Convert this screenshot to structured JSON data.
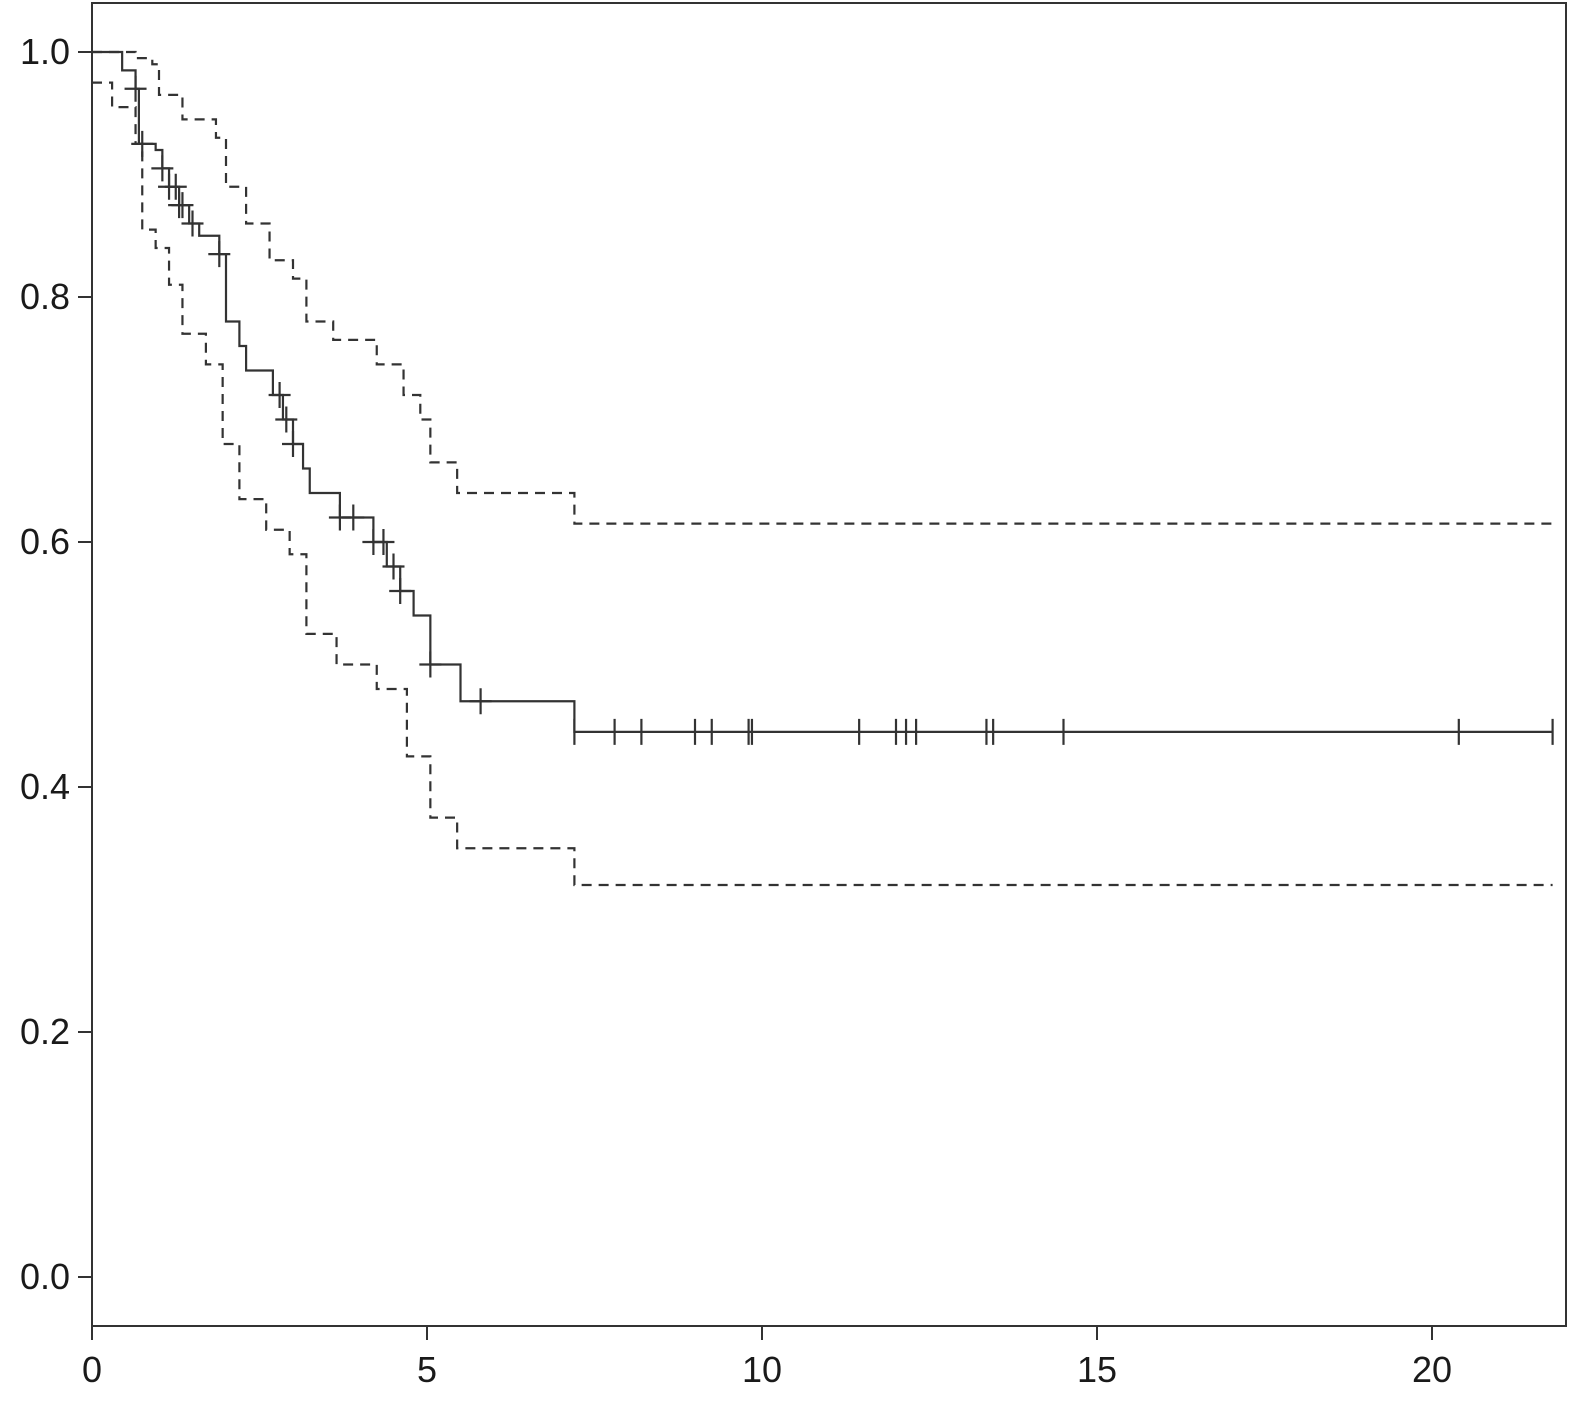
{
  "chart_data": {
    "type": "line",
    "title": "",
    "xlabel": "",
    "ylabel": "",
    "xlim": [
      0,
      22
    ],
    "ylim": [
      -0.04,
      1.04
    ],
    "x_ticks": [
      0,
      5,
      10,
      15,
      20
    ],
    "x_tick_labels": [
      "0",
      "5",
      "10",
      "15",
      "20"
    ],
    "y_ticks": [
      0.0,
      0.2,
      0.4,
      0.6,
      0.8,
      1.0
    ],
    "y_tick_labels": [
      "0.0",
      "0.2",
      "0.4",
      "0.6",
      "0.8",
      "1.0"
    ],
    "grid": false,
    "series": [
      {
        "role": "estimate",
        "style": "solid-step",
        "x": [
          0,
          0.45,
          0.65,
          0.7,
          0.95,
          1.05,
          1.15,
          1.3,
          1.45,
          1.6,
          1.9,
          2.0,
          2.2,
          2.3,
          2.7,
          2.85,
          3.0,
          3.15,
          3.25,
          3.7,
          4.2,
          4.4,
          4.6,
          4.8,
          5.05,
          5.5,
          7.2,
          21.8
        ],
        "y": [
          1.0,
          0.985,
          0.97,
          0.925,
          0.92,
          0.905,
          0.89,
          0.875,
          0.86,
          0.85,
          0.835,
          0.78,
          0.76,
          0.74,
          0.72,
          0.7,
          0.68,
          0.66,
          0.64,
          0.62,
          0.6,
          0.58,
          0.56,
          0.54,
          0.5,
          0.47,
          0.445,
          0.445
        ]
      },
      {
        "role": "upper-ci",
        "style": "dashed-step",
        "x": [
          0,
          0.65,
          0.9,
          1.0,
          1.35,
          1.85,
          2.0,
          2.3,
          2.65,
          3.0,
          3.2,
          3.6,
          4.25,
          4.65,
          4.9,
          5.05,
          5.45,
          7.2,
          21.8
        ],
        "y": [
          1.0,
          0.995,
          0.99,
          0.965,
          0.945,
          0.93,
          0.89,
          0.86,
          0.83,
          0.815,
          0.78,
          0.765,
          0.745,
          0.72,
          0.7,
          0.665,
          0.64,
          0.615,
          0.615
        ]
      },
      {
        "role": "lower-ci",
        "style": "dashed-step",
        "x": [
          0,
          0.3,
          0.65,
          0.75,
          0.95,
          1.15,
          1.35,
          1.7,
          1.95,
          2.2,
          2.6,
          2.95,
          3.2,
          3.65,
          4.25,
          4.7,
          5.05,
          5.45,
          7.2,
          21.8
        ],
        "y": [
          0.975,
          0.955,
          0.925,
          0.855,
          0.84,
          0.81,
          0.77,
          0.745,
          0.68,
          0.635,
          0.61,
          0.59,
          0.525,
          0.5,
          0.48,
          0.425,
          0.375,
          0.35,
          0.32,
          0.32
        ]
      }
    ],
    "censor_times": [
      0.65,
      0.75,
      1.05,
      1.15,
      1.25,
      1.3,
      1.35,
      1.5,
      1.9,
      2.8,
      2.9,
      3.0,
      3.7,
      3.9,
      4.2,
      4.35,
      4.5,
      4.6,
      5.05,
      5.8,
      7.2,
      7.8,
      8.2,
      9.0,
      9.25,
      9.8,
      9.85,
      11.45,
      12.0,
      12.15,
      12.3,
      13.35,
      13.45,
      14.5,
      20.4,
      21.8
    ]
  }
}
